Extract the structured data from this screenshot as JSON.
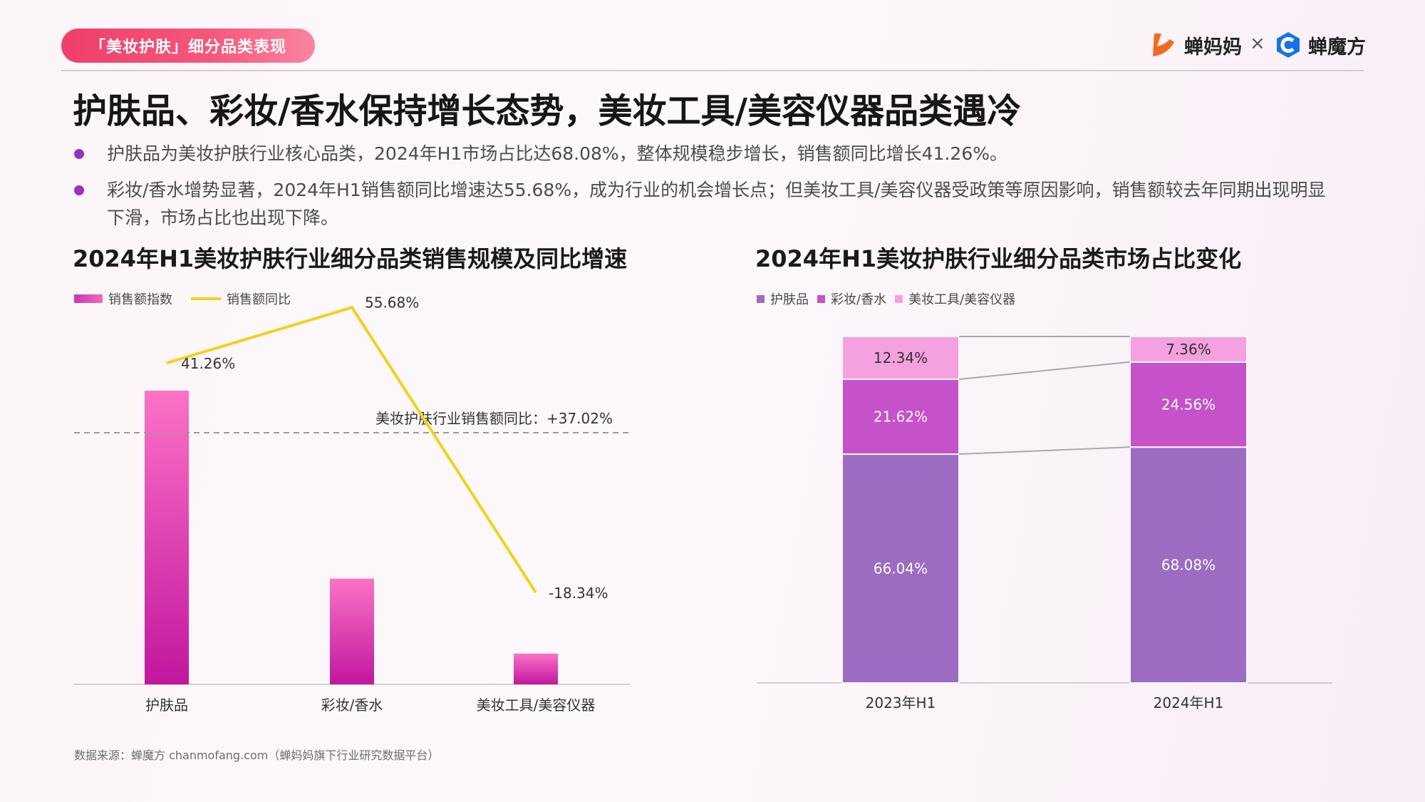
{
  "header": {
    "tag": "「美妆护肤」细分品类表现",
    "brand_left": "蝉妈妈",
    "brand_sep": "×",
    "brand_right": "蝉魔方"
  },
  "title": "护肤品、彩妆/香水保持增长态势，美妆工具/美容仪器品类遇冷",
  "bullets": [
    "护肤品为美妆护肤行业核心品类，2024年H1市场占比达68.08%，整体规模稳步增长，销售额同比增长41.26%。",
    "彩妆/香水增势显著，2024年H1销售额同比增速达55.68%，成为行业的机会增长点；但美妆工具/美容仪器受政策等原因影响，销售额较去年同期出现明显下滑，市场占比也出现下降。"
  ],
  "colors": {
    "accent": "#9b2fbf",
    "bar_top": "#fb72c6",
    "bar_bottom": "#c2169f",
    "line": "#f0d21d",
    "skin": "#9c6cc2",
    "makeup": "#c552c9",
    "tools": "#f5a0df"
  },
  "chart_data": [
    {
      "type": "bar",
      "title": "2024年H1美妆护肤行业细分品类销售规模及同比增速",
      "categories": [
        "护肤品",
        "彩妆/香水",
        "美妆工具/美容仪器"
      ],
      "series": [
        {
          "name": "销售额指数",
          "type": "bar",
          "values": [
            100,
            36,
            10.5
          ]
        },
        {
          "name": "销售额同比",
          "type": "line",
          "values": [
            41.26,
            55.68,
            -18.34
          ],
          "labels": [
            "41.26%",
            "55.68%",
            "-18.34%"
          ]
        }
      ],
      "reference_line": {
        "label": "美妆护肤行业销售额同比：+37.02%",
        "value": 37.02
      },
      "legend": "top-left"
    },
    {
      "type": "bar",
      "stacked": true,
      "title": "2024年H1美妆护肤行业细分品类市场占比变化",
      "categories": [
        "2023年H1",
        "2024年H1"
      ],
      "series": [
        {
          "name": "护肤品",
          "values": [
            66.04,
            68.08
          ]
        },
        {
          "name": "彩妆/香水",
          "values": [
            21.62,
            24.56
          ]
        },
        {
          "name": "美妆工具/美容仪器",
          "values": [
            12.34,
            7.36
          ]
        }
      ],
      "unit": "%",
      "legend": "top-left"
    }
  ],
  "source": "数据来源：蝉魔方 chanmofang.com（蝉妈妈旗下行业研究数据平台）"
}
